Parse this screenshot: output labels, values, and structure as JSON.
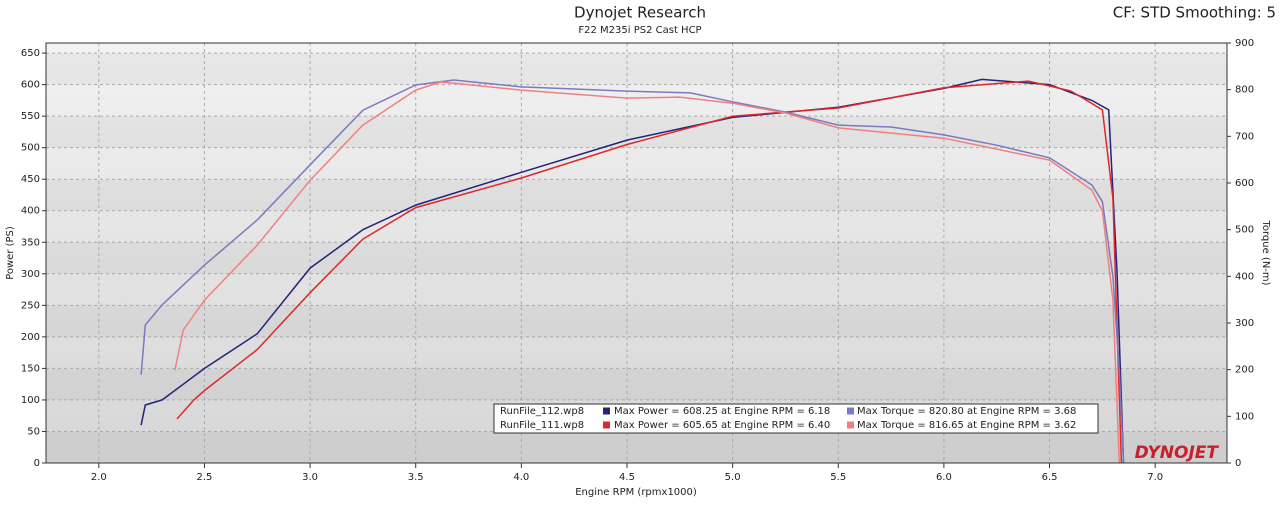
{
  "chart_data": {
    "type": "line",
    "title": "Dynojet Research",
    "subtitle": "F22 M235i PS2 Cast HCP",
    "corner_text": "CF: STD Smoothing: 5",
    "x_label": "Engine RPM (rpmx1000)",
    "y_label": "Power (PS)",
    "y2_label": "Torque (N-m)",
    "logo": "DYNOJET",
    "xlim": [
      1.75,
      7.34
    ],
    "ylim": [
      0,
      666
    ],
    "y2lim": [
      0,
      900
    ],
    "xticks": [
      {
        "value": 2,
        "label": "2.0"
      },
      {
        "value": 2.5,
        "label": "2.5"
      },
      {
        "value": 3,
        "label": "3.0"
      },
      {
        "value": 3.5,
        "label": "3.5"
      },
      {
        "value": 4,
        "label": "4.0"
      },
      {
        "value": 4.5,
        "label": "4.5"
      },
      {
        "value": 5,
        "label": "5.0"
      },
      {
        "value": 5.5,
        "label": "5.5"
      },
      {
        "value": 6,
        "label": "6.0"
      },
      {
        "value": 6.5,
        "label": "6.5"
      },
      {
        "value": 7,
        "label": "7.0"
      }
    ],
    "yticks": [
      0,
      50,
      100,
      150,
      200,
      250,
      300,
      350,
      400,
      450,
      500,
      550,
      600,
      650
    ],
    "y2ticks": [
      0,
      100,
      200,
      300,
      400,
      500,
      600,
      700,
      800,
      900
    ],
    "grid": true,
    "series": [
      {
        "name": "RunFile_112.wp8",
        "color": "#23237a",
        "x": [
          2.2,
          2.22,
          2.3,
          2.4,
          2.5,
          2.75,
          3.0,
          3.25,
          3.5,
          4.0,
          4.5,
          5.0,
          5.5,
          6.0,
          6.18,
          6.5,
          6.7,
          6.78,
          6.82,
          6.85
        ],
        "values": [
          60,
          92,
          100,
          125,
          150,
          205,
          309,
          370,
          409,
          461,
          512,
          548,
          564,
          594,
          608.25,
          600,
          575,
          560,
          300,
          0
        ]
      },
      {
        "name": "RunFile_111.wp8",
        "color": "#e02828",
        "x": [
          2.37,
          2.45,
          2.5,
          2.75,
          3.0,
          3.25,
          3.5,
          4.0,
          4.5,
          5.0,
          5.5,
          6.0,
          6.4,
          6.6,
          6.75,
          6.8,
          6.84
        ],
        "values": [
          70,
          100,
          115,
          180,
          270,
          355,
          405,
          452,
          505,
          550,
          563,
          595,
          605.65,
          590,
          560,
          420,
          0
        ]
      },
      {
        "name": "RunFile_112.wp8",
        "color": "#7a7ac2",
        "axis": "y2",
        "x": [
          2.2,
          2.22,
          2.3,
          2.5,
          2.75,
          3.0,
          3.25,
          3.5,
          3.68,
          4.0,
          4.5,
          4.8,
          5.0,
          5.25,
          5.5,
          5.75,
          6.0,
          6.25,
          6.5,
          6.7,
          6.75,
          6.8,
          6.83,
          6.85
        ],
        "values": [
          189,
          296,
          339,
          424,
          521,
          639,
          756,
          810,
          820.8,
          806,
          797,
          793,
          774,
          752,
          724,
          720,
          703,
          681,
          654,
          596,
          560,
          400,
          200,
          0
        ]
      },
      {
        "name": "RunFile_111.wp8",
        "color": "#f08080",
        "axis": "y2",
        "x": [
          2.36,
          2.4,
          2.5,
          2.75,
          3.0,
          3.25,
          3.5,
          3.62,
          4.0,
          4.5,
          4.75,
          5.0,
          5.25,
          5.5,
          6.0,
          6.5,
          6.7,
          6.75,
          6.8,
          6.83
        ],
        "values": [
          199,
          285,
          349,
          467,
          606,
          724,
          799,
          816.65,
          799,
          782,
          784,
          771,
          750,
          718,
          696,
          649,
          585,
          540,
          350,
          0
        ]
      }
    ],
    "legend": [
      {
        "file": "RunFile_112.wp8",
        "power": "Max Power = 608.25 at Engine RPM = 6.18",
        "torque": "Max Torque = 820.80 at Engine RPM = 3.68"
      },
      {
        "file": "RunFile_111.wp8",
        "power": "Max Power = 605.65 at Engine RPM = 6.40",
        "torque": "Max Torque = 816.65 at Engine RPM = 3.62"
      }
    ]
  }
}
